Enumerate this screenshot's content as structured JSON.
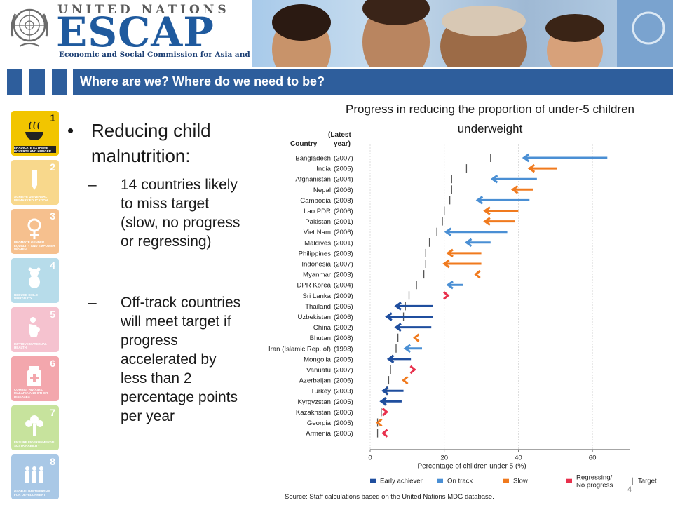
{
  "header": {
    "org_top": "UNITED NATIONS",
    "org_name": "ESCAP",
    "org_full": "Economic and Social Commission for Asia and the Pacific"
  },
  "title": "Where are we? Where do we need to be?",
  "sidebar": {
    "goals": [
      {
        "num": "1",
        "text": "ERADICATE EXTREME POVERTY AND HUNGER",
        "color": "#f2c500",
        "icon": "bowl-icon"
      },
      {
        "num": "2",
        "text": "ACHIEVE UNIVERSAL PRIMARY EDUCATION",
        "color": "#f8d88c",
        "icon": "pencil-icon"
      },
      {
        "num": "3",
        "text": "PROMOTE GENDER EQUALITY AND EMPOWER WOMEN",
        "color": "#f6c08e",
        "icon": "female-symbol-icon"
      },
      {
        "num": "4",
        "text": "REDUCE CHILD MORTALITY",
        "color": "#b7dcea",
        "icon": "teddy-bear-icon"
      },
      {
        "num": "5",
        "text": "IMPROVE MATERNAL HEALTH",
        "color": "#f5c2cf",
        "icon": "mother-icon"
      },
      {
        "num": "6",
        "text": "COMBAT HIV/AIDS, MALARIA AND OTHER DISEASES",
        "color": "#f3a7ad",
        "icon": "medicine-bottle-icon"
      },
      {
        "num": "7",
        "text": "ENSURE ENVIRONMENTAL SUSTAINABILITY",
        "color": "#c7e39d",
        "icon": "tree-icon"
      },
      {
        "num": "8",
        "text": "GLOBAL PARTNERSHIP FOR DEVELOPMENT",
        "color": "#a9c8e6",
        "icon": "people-icon"
      }
    ]
  },
  "content": {
    "bullet": "•",
    "dash": "–",
    "main_point": "Reducing child malnutrition:",
    "sub_points": [
      "14 countries likely  to miss target (slow, no progress or regressing)",
      "Off-track countries will meet target if progress accelerated by less than 2 percentage points per year"
    ]
  },
  "chart_title": "Progress in reducing the proportion of under-5 children underweight",
  "source": "Source: Staff calculations based on the United Nations MDG database.",
  "page_number": "4",
  "chart_data": {
    "type": "arrow",
    "col_country": "Country",
    "col_year": "(Latest year)",
    "xlabel": "Percentage of children under 5 (%)",
    "xlim": [
      0,
      70
    ],
    "xticks": [
      0,
      20,
      40,
      60
    ],
    "colors": {
      "early": "#1f4e9e",
      "ontrack": "#4a8fd4",
      "slow": "#f07a1e",
      "regress": "#e8304c",
      "target": "#555555"
    },
    "legend": [
      {
        "key": "early",
        "label": "Early achiever"
      },
      {
        "key": "ontrack",
        "label": "On track"
      },
      {
        "key": "slow",
        "label": "Slow"
      },
      {
        "key": "regress",
        "label": "Regressing/ No progress"
      },
      {
        "key": "target",
        "label": "Target"
      }
    ],
    "countries": [
      {
        "name": "Bangladesh",
        "year": "(2007)",
        "target": 32.5,
        "start": 64,
        "end": 41.5,
        "status": "ontrack"
      },
      {
        "name": "India",
        "year": "(2005)",
        "target": 26,
        "start": 50.5,
        "end": 43,
        "status": "slow"
      },
      {
        "name": "Afghanistan",
        "year": "(2004)",
        "target": 22,
        "start": 45,
        "end": 33,
        "status": "ontrack"
      },
      {
        "name": "Nepal",
        "year": "(2006)",
        "target": 22,
        "start": 44,
        "end": 38.5,
        "status": "slow"
      },
      {
        "name": "Cambodia",
        "year": "(2008)",
        "target": 21.5,
        "start": 43,
        "end": 29,
        "status": "ontrack"
      },
      {
        "name": "Lao PDR",
        "year": "(2006)",
        "target": 20,
        "start": 40,
        "end": 31,
        "status": "slow"
      },
      {
        "name": "Pakistan",
        "year": "(2001)",
        "target": 19.5,
        "start": 39,
        "end": 31,
        "status": "slow"
      },
      {
        "name": "Viet Nam",
        "year": "(2006)",
        "target": 18,
        "start": 37,
        "end": 20.5,
        "status": "ontrack"
      },
      {
        "name": "Maldives",
        "year": "(2001)",
        "target": 16,
        "start": 32.5,
        "end": 26,
        "status": "ontrack"
      },
      {
        "name": "Philippines",
        "year": "(2003)",
        "target": 15,
        "start": 30,
        "end": 21,
        "status": "slow"
      },
      {
        "name": "Indonesia",
        "year": "(2007)",
        "target": 15,
        "start": 30,
        "end": 20,
        "status": "slow"
      },
      {
        "name": "Myanmar",
        "year": "(2003)",
        "target": 14.5,
        "start": 29,
        "end": 28.5,
        "status": "slow"
      },
      {
        "name": "DPR Korea",
        "year": "(2004)",
        "target": 12.5,
        "start": 25,
        "end": 21,
        "status": "ontrack"
      },
      {
        "name": "Sri Lanka",
        "year": "(2009)",
        "target": 10.5,
        "start": 20.5,
        "end": 21,
        "status": "regress"
      },
      {
        "name": "Thailand",
        "year": "(2005)",
        "target": 9.5,
        "start": 17,
        "end": 7,
        "status": "early"
      },
      {
        "name": "Uzbekistan",
        "year": "(2006)",
        "target": 9,
        "start": 17,
        "end": 4.5,
        "status": "early"
      },
      {
        "name": "China",
        "year": "(2002)",
        "target": 8,
        "start": 16.5,
        "end": 7,
        "status": "early"
      },
      {
        "name": "Bhutan",
        "year": "(2008)",
        "target": 7.5,
        "start": 13.5,
        "end": 12,
        "status": "slow"
      },
      {
        "name": "Iran (Islamic Rep. of)",
        "year": "(1998)",
        "target": 7,
        "start": 14,
        "end": 9.5,
        "status": "ontrack"
      },
      {
        "name": "Mongolia",
        "year": "(2005)",
        "target": 6,
        "start": 11,
        "end": 5,
        "status": "early"
      },
      {
        "name": "Vanuatu",
        "year": "(2007)",
        "target": 5.5,
        "start": 11,
        "end": 12,
        "status": "regress"
      },
      {
        "name": "Azerbaijan",
        "year": "(2006)",
        "target": 5,
        "start": 10,
        "end": 9,
        "status": "slow"
      },
      {
        "name": "Turkey",
        "year": "(2003)",
        "target": 4.5,
        "start": 9,
        "end": 3.5,
        "status": "early"
      },
      {
        "name": "Kyrgyzstan",
        "year": "(2005)",
        "target": 4,
        "start": 8.5,
        "end": 3,
        "status": "early"
      },
      {
        "name": "Kazakhstan",
        "year": "(2006)",
        "target": 3,
        "start": 4.5,
        "end": 4.5,
        "status": "regress"
      },
      {
        "name": "Georgia",
        "year": "(2005)",
        "target": 2,
        "start": 3.5,
        "end": 2,
        "status": "slow"
      },
      {
        "name": "Armenia",
        "year": "(2005)",
        "target": 2,
        "start": 4,
        "end": 3.5,
        "status": "regress"
      }
    ]
  }
}
